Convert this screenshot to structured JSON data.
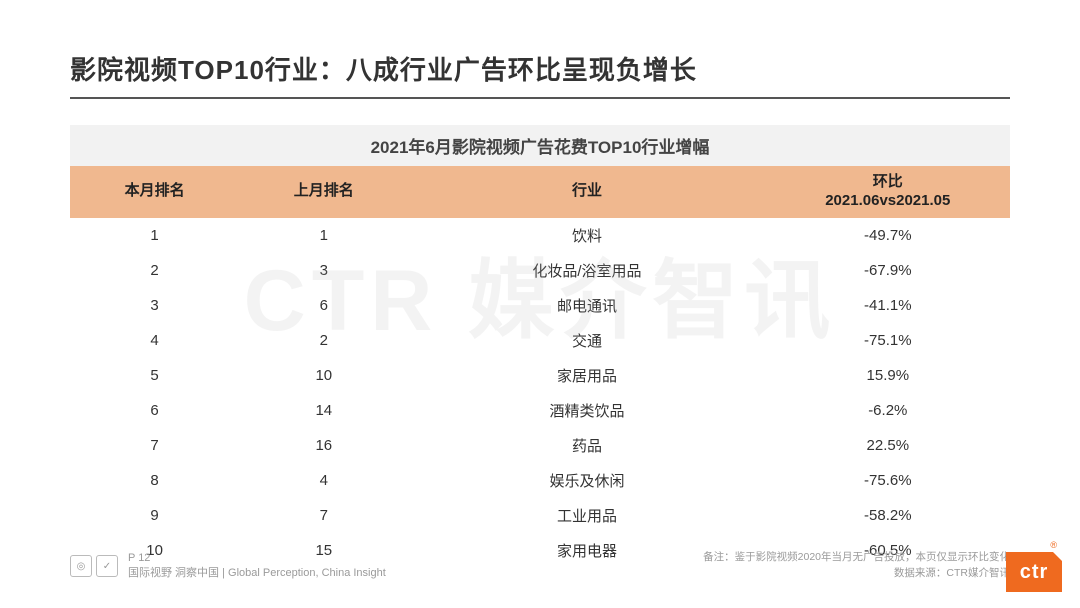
{
  "title": "影院视频TOP10行业：八成行业广告环比呈现负增长",
  "watermark": "CTR 媒介智讯",
  "table": {
    "caption": "2021年6月影院视频广告花费TOP10行业增幅",
    "type": "table",
    "header_bg": "#f0b88f",
    "caption_bg": "#f2f2f2",
    "text_color": "#333333",
    "columns": [
      {
        "key": "rank_this",
        "label": "本月排名"
      },
      {
        "key": "rank_last",
        "label": "上月排名"
      },
      {
        "key": "industry",
        "label": "行业"
      },
      {
        "key": "change",
        "label": "环比\n2021.06vs2021.05"
      }
    ],
    "rows": [
      {
        "rank_this": "1",
        "rank_last": "1",
        "industry": "饮料",
        "change": "-49.7%"
      },
      {
        "rank_this": "2",
        "rank_last": "3",
        "industry": "化妆品/浴室用品",
        "change": "-67.9%"
      },
      {
        "rank_this": "3",
        "rank_last": "6",
        "industry": "邮电通讯",
        "change": "-41.1%"
      },
      {
        "rank_this": "4",
        "rank_last": "2",
        "industry": "交通",
        "change": "-75.1%"
      },
      {
        "rank_this": "5",
        "rank_last": "10",
        "industry": "家居用品",
        "change": "15.9%"
      },
      {
        "rank_this": "6",
        "rank_last": "14",
        "industry": "酒精类饮品",
        "change": "-6.2%"
      },
      {
        "rank_this": "7",
        "rank_last": "16",
        "industry": "药品",
        "change": "22.5%"
      },
      {
        "rank_this": "8",
        "rank_last": "4",
        "industry": "娱乐及休闲",
        "change": "-75.6%"
      },
      {
        "rank_this": "9",
        "rank_last": "7",
        "industry": "工业用品",
        "change": "-58.2%"
      },
      {
        "rank_this": "10",
        "rank_last": "15",
        "industry": "家用电器",
        "change": "-60.5%"
      }
    ]
  },
  "footer": {
    "page": "P 12",
    "tagline": "国际视野 洞察中国 | Global Perception, China Insight",
    "note_line1": "备注：鉴于影院视频2020年当月无广告投放，本页仅显示环比变化",
    "note_line2": "数据来源：CTR媒介智讯",
    "logo_text": "ctr",
    "logo_bg": "#ef6a1f"
  }
}
